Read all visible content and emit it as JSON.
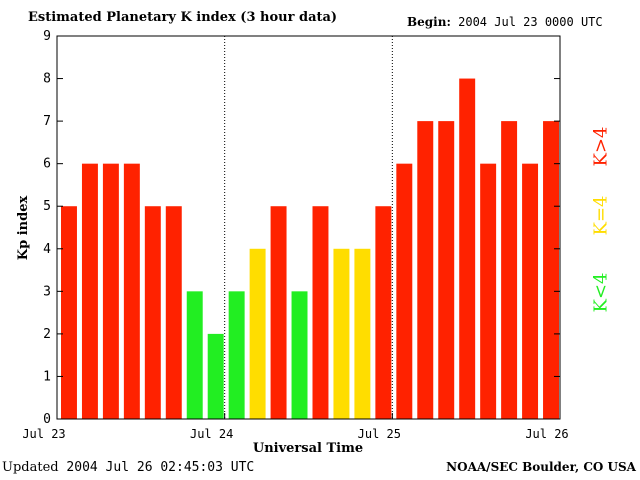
{
  "header": {
    "title": "Estimated Planetary K index (3 hour data)",
    "begin_label": "Begin:",
    "begin_value": "2004 Jul 23 0000 UTC"
  },
  "footer": {
    "updated_label": "Updated",
    "updated_value": "2004 Jul 26 02:45:03 UTC",
    "source": "NOAA/SEC Boulder, CO USA"
  },
  "legend": {
    "high": "K>4",
    "mid": "K=4",
    "low": "K<4"
  },
  "colors": {
    "high": "#ff2200",
    "mid": "#ffdd00",
    "low": "#22ee22"
  },
  "chart_data": {
    "type": "bar",
    "title": "Estimated Planetary K index (3 hour data)",
    "xlabel": "Universal Time",
    "ylabel": "Kp index",
    "ylim": [
      0,
      9
    ],
    "yticks": [
      "0",
      "1",
      "2",
      "3",
      "4",
      "5",
      "6",
      "7",
      "8",
      "9"
    ],
    "xtick_labels": [
      "Jul 23",
      "Jul 24",
      "Jul 25",
      "Jul 26"
    ],
    "values": [
      5,
      6,
      6,
      6,
      5,
      5,
      3,
      2,
      3,
      4,
      5,
      3,
      5,
      4,
      4,
      5,
      6,
      7,
      7,
      8,
      6,
      7,
      6,
      7
    ]
  }
}
